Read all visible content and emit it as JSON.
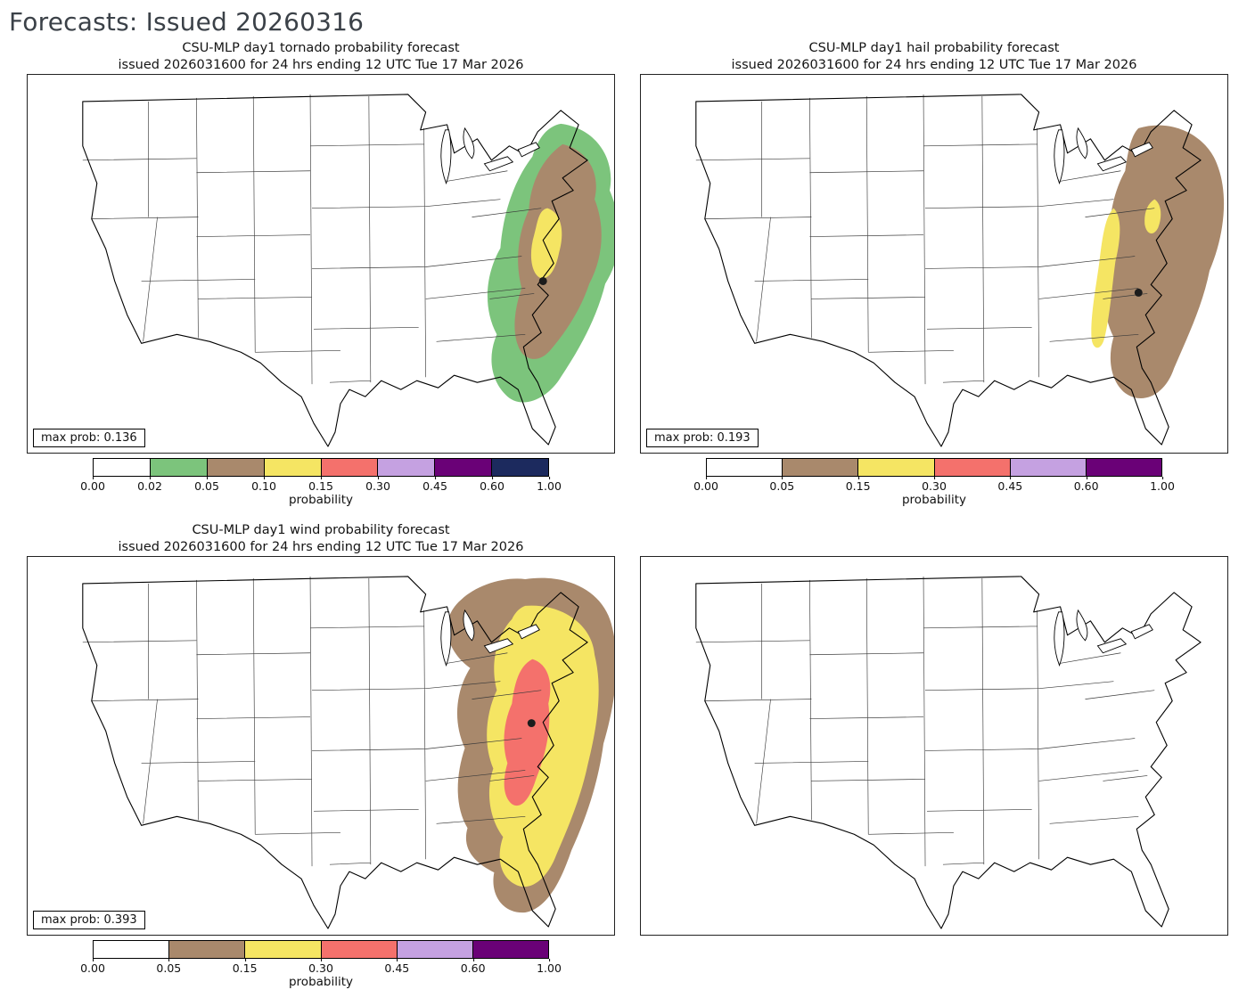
{
  "page": {
    "title": "Forecasts: Issued 20260316"
  },
  "map_colors": {
    "green": "#7cc47c",
    "brown": "#a9896c",
    "yellow": "#f5e563",
    "red": "#f4716c",
    "violet": "#c5a1e1",
    "purple": "#6a0177",
    "navy": "#1c2a5e",
    "white": "#ffffff"
  },
  "panels": [
    {
      "hazard": "tornado",
      "title_line1": "CSU-MLP day1 tornado probability forecast",
      "title_line2": "issued 2026031600 for 24 hrs ending 12 UTC Tue 17 Mar 2026",
      "max_prob": "max prob: 0.136",
      "colorbar": {
        "ticks": [
          "0.00",
          "0.02",
          "0.05",
          "0.10",
          "0.15",
          "0.30",
          "0.45",
          "0.60",
          "1.00"
        ],
        "colors": [
          "#ffffff",
          "#7cc47c",
          "#a9896c",
          "#f5e563",
          "#f4716c",
          "#c5a1e1",
          "#6a0177",
          "#1c2a5e"
        ],
        "label": "probability"
      }
    },
    {
      "hazard": "hail",
      "title_line1": "CSU-MLP day1 hail probability forecast",
      "title_line2": "issued 2026031600 for 24 hrs ending 12 UTC Tue 17 Mar 2026",
      "max_prob": "max prob: 0.193",
      "colorbar": {
        "ticks": [
          "0.00",
          "0.05",
          "0.15",
          "0.30",
          "0.45",
          "0.60",
          "1.00"
        ],
        "colors": [
          "#ffffff",
          "#a9896c",
          "#f5e563",
          "#f4716c",
          "#c5a1e1",
          "#6a0177"
        ],
        "label": "probability"
      }
    },
    {
      "hazard": "wind",
      "title_line1": "CSU-MLP day1 wind probability forecast",
      "title_line2": "issued 2026031600 for 24 hrs ending 12 UTC Tue 17 Mar 2026",
      "max_prob": "max prob: 0.393",
      "colorbar": {
        "ticks": [
          "0.00",
          "0.05",
          "0.15",
          "0.30",
          "0.45",
          "0.60",
          "1.00"
        ],
        "colors": [
          "#ffffff",
          "#a9896c",
          "#f5e563",
          "#f4716c",
          "#c5a1e1",
          "#6a0177"
        ],
        "label": "probability"
      }
    },
    {
      "hazard": "none",
      "title_line1": "",
      "title_line2": ""
    }
  ]
}
